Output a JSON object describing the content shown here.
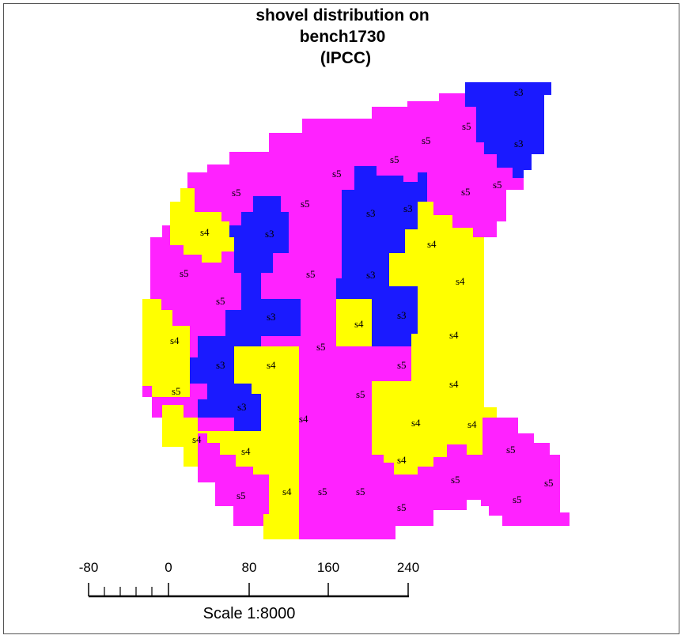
{
  "title": {
    "line1": "shovel distribution on",
    "line2": "bench1730",
    "line3": "(IPCC)"
  },
  "colors": {
    "s3": "#1a1aff",
    "s4": "#ffff00",
    "s5": "#ff22ff",
    "frame": "#555555",
    "text": "#000000"
  },
  "zone_labels": [
    "s3",
    "s4",
    "s5"
  ],
  "scale_bar": {
    "tick_labels": [
      "-80",
      "0",
      "80",
      "160",
      "240"
    ],
    "caption": "Scale 1:8000"
  }
}
